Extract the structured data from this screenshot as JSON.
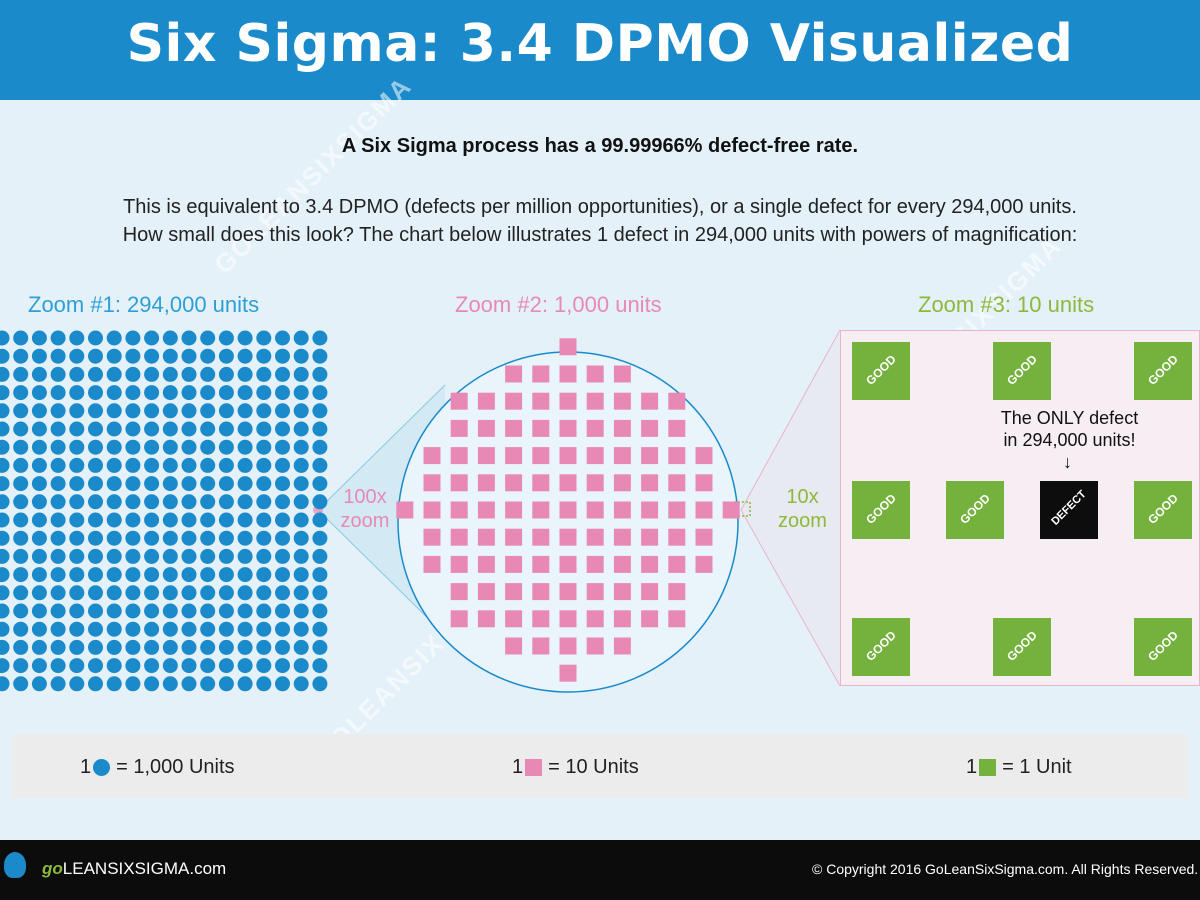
{
  "title": "Six Sigma: 3.4 DPMO Visualized",
  "intro": {
    "bold_line": "A Six Sigma process has a 99.99966% defect-free rate.",
    "line1": "This is equivalent to 3.4 DPMO (defects per million opportunities), or a single defect for every 294,000 units.",
    "line2": "How small does this look? The chart below illustrates 1 defect in 294,000 units with powers of magnification:"
  },
  "zooms": [
    {
      "title": "Zoom #1: 294,000 units"
    },
    {
      "title": "Zoom #2: 1,000 units"
    },
    {
      "title": "Zoom #3: 10 units"
    }
  ],
  "magnifications": {
    "first_line1": "100x",
    "first_line2": "zoom",
    "second_line1": "10x",
    "second_line2": "zoom"
  },
  "zoom3": {
    "good_label": "GOOD",
    "defect_label": "DEFECT",
    "callout_line1": "The ONLY defect",
    "callout_line2": "in 294,000 units!",
    "arrow": "↓"
  },
  "legend": [
    {
      "count": "1",
      "text": "= 1,000 Units"
    },
    {
      "count": "1",
      "text": "= 10 Units"
    },
    {
      "count": "1",
      "text": "= 1 Unit"
    }
  ],
  "footer": {
    "logo_go": "go",
    "logo_rest": "LEANSIXSIGMA.com",
    "copyright": "© Copyright 2016 GoLeanSixSigma.com. All Rights Reserved."
  },
  "watermark": "GOLEANSIXSIGMA",
  "colors": {
    "blue": "#1a8acb",
    "pink": "#e889b5",
    "green": "#74b13d",
    "defect": "#0d0d0d"
  }
}
